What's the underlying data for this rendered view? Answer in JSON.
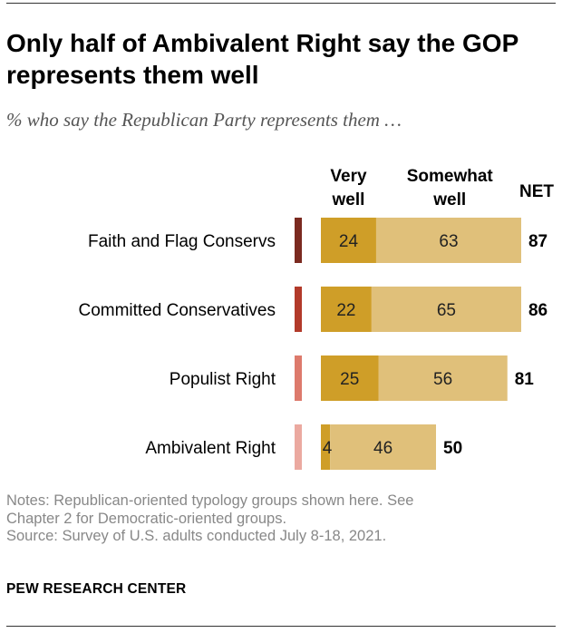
{
  "title": "Only half of Ambivalent Right say the GOP represents them well",
  "subtitle": "% who say the Republican Party represents them …",
  "notes": [
    "Notes: Republican-oriented typology groups shown here. See",
    "Chapter 2 for Democratic-oriented groups.",
    "Source: Survey of U.S. adults conducted July 8-18, 2021."
  ],
  "footer": "PEW RESEARCH CENTER",
  "chart_data": {
    "type": "bar",
    "orientation": "horizontal",
    "stacked": true,
    "title": "Only half of Ambivalent Right say the GOP represents them well",
    "subtitle": "% who say the Republican Party represents them …",
    "categories": [
      "Faith and Flag Conservs",
      "Committed Conservatives",
      "Populist Right",
      "Ambivalent Right"
    ],
    "category_colors": [
      "#7b2a20",
      "#b23a2a",
      "#dd7a6c",
      "#eba9a0"
    ],
    "series": [
      {
        "name": "Very well",
        "values": [
          24,
          22,
          25,
          4
        ],
        "color": "#cf9e28"
      },
      {
        "name": "Somewhat well",
        "values": [
          63,
          65,
          56,
          46
        ],
        "color": "#e0c07a"
      }
    ],
    "net": {
      "name": "NET",
      "values": [
        87,
        86,
        81,
        50
      ]
    },
    "xlim": [
      0,
      100
    ],
    "grid": false,
    "legend": "column headers above bars"
  },
  "colors": {
    "very_well": "#cf9e28",
    "somewhat_well": "#e0c07a",
    "notes_text": "#888888",
    "subtitle_text": "#555555"
  }
}
